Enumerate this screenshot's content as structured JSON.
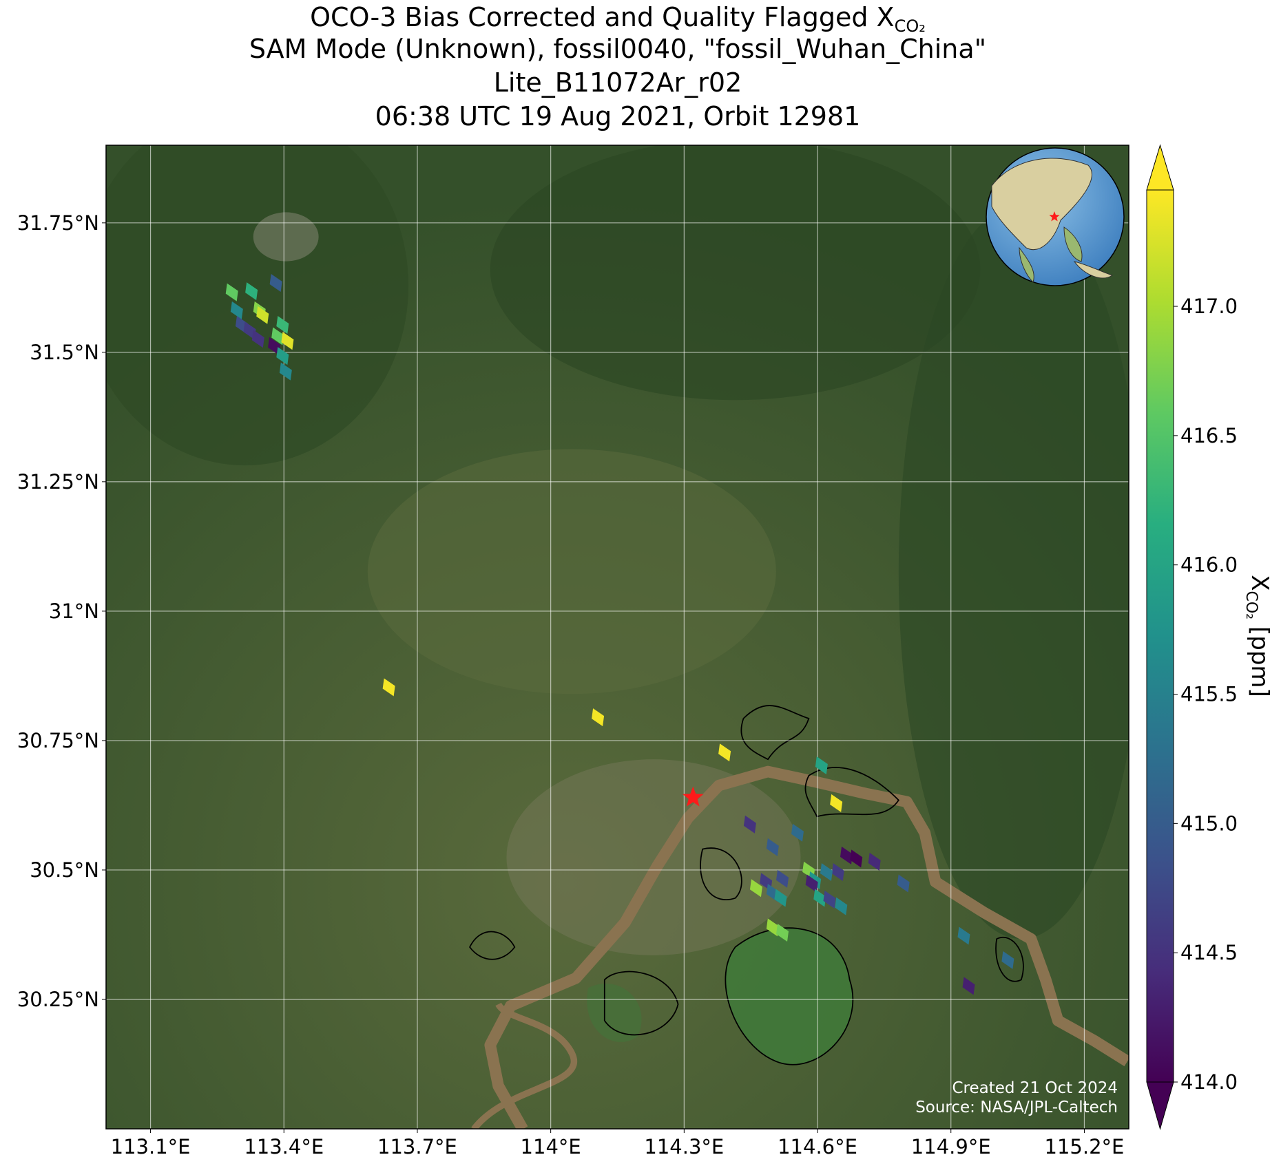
{
  "chart_data": {
    "type": "map",
    "title": "OCO-3 Bias Corrected and Quality Flagged X",
    "title_sub": "CO₂",
    "subtitle_lines": [
      "SAM Mode (Unknown), fossil0040, \"fossil_Wuhan_China\"",
      "Lite_B11072Ar_r02",
      "06:38 UTC 19 Aug 2021, Orbit 12981"
    ],
    "xlim": [
      113.0,
      115.3
    ],
    "ylim": [
      30.0,
      31.9
    ],
    "xticks": [
      {
        "value": 113.1,
        "label": "113.1°E"
      },
      {
        "value": 113.4,
        "label": "113.4°E"
      },
      {
        "value": 113.7,
        "label": "113.7°E"
      },
      {
        "value": 114.0,
        "label": "114°E"
      },
      {
        "value": 114.3,
        "label": "114.3°E"
      },
      {
        "value": 114.6,
        "label": "114.6°E"
      },
      {
        "value": 114.9,
        "label": "114.9°E"
      },
      {
        "value": 115.2,
        "label": "115.2°E"
      }
    ],
    "yticks": [
      {
        "value": 30.25,
        "label": "30.25°N"
      },
      {
        "value": 30.5,
        "label": "30.5°N"
      },
      {
        "value": 30.75,
        "label": "30.75°N"
      },
      {
        "value": 31.0,
        "label": "31°N"
      },
      {
        "value": 31.25,
        "label": "31.25°N"
      },
      {
        "value": 31.5,
        "label": "31.5°N"
      },
      {
        "value": 31.75,
        "label": "31.75°N"
      }
    ],
    "grid": true,
    "colormap": "viridis",
    "clim": [
      414.0,
      417.45
    ],
    "colorbar_ticks": [
      {
        "value": 414.0,
        "label": "414.0"
      },
      {
        "value": 414.5,
        "label": "414.5"
      },
      {
        "value": 415.0,
        "label": "415.0"
      },
      {
        "value": 415.5,
        "label": "415.5"
      },
      {
        "value": 416.0,
        "label": "416.0"
      },
      {
        "value": 416.5,
        "label": "416.5"
      },
      {
        "value": 417.0,
        "label": "417.0"
      }
    ],
    "colorbar_label": "X",
    "colorbar_label_sub": "CO₂",
    "colorbar_label_unit": "[ppm]",
    "target": {
      "lon": 114.32,
      "lat": 30.64
    },
    "soundings": {
      "lon": [
        113.283,
        113.327,
        113.382,
        113.294,
        113.345,
        113.352,
        113.305,
        113.323,
        113.342,
        113.397,
        113.386,
        113.408,
        113.378,
        113.397,
        113.404,
        113.636,
        114.106,
        114.391,
        114.609,
        114.642,
        114.448,
        114.499,
        114.555,
        114.665,
        114.687,
        114.728,
        114.646,
        114.793,
        114.58,
        114.594,
        114.587,
        114.62,
        114.484,
        114.521,
        114.462,
        114.499,
        114.517,
        114.605,
        114.627,
        114.653,
        114.499,
        114.521,
        114.929,
        115.028,
        114.94
      ],
      "lat": [
        31.616,
        31.618,
        31.634,
        31.581,
        31.581,
        31.572,
        31.553,
        31.542,
        31.526,
        31.553,
        31.531,
        31.522,
        31.512,
        31.493,
        31.463,
        30.853,
        30.795,
        30.727,
        30.702,
        30.629,
        30.588,
        30.544,
        30.572,
        30.528,
        30.522,
        30.516,
        30.496,
        30.474,
        30.499,
        30.48,
        30.474,
        30.496,
        30.477,
        30.483,
        30.465,
        30.456,
        30.446,
        30.446,
        30.443,
        30.43,
        30.389,
        30.379,
        30.373,
        30.326,
        30.276
      ],
      "values": [
        416.6,
        416.2,
        415.0,
        415.6,
        416.8,
        417.2,
        414.8,
        414.6,
        414.5,
        416.3,
        416.6,
        417.3,
        414.1,
        415.9,
        415.6,
        417.4,
        417.4,
        417.4,
        416.0,
        417.4,
        414.5,
        415.0,
        415.2,
        414.1,
        414.0,
        414.4,
        414.6,
        415.0,
        416.8,
        415.8,
        414.3,
        415.4,
        414.6,
        414.8,
        416.9,
        415.2,
        415.8,
        416.0,
        414.7,
        415.6,
        416.9,
        416.7,
        415.4,
        415.2,
        414.3
      ]
    },
    "annotations": [
      "Created 21 Oct 2024",
      "Source: NASA/JPL-Caltech"
    ]
  }
}
